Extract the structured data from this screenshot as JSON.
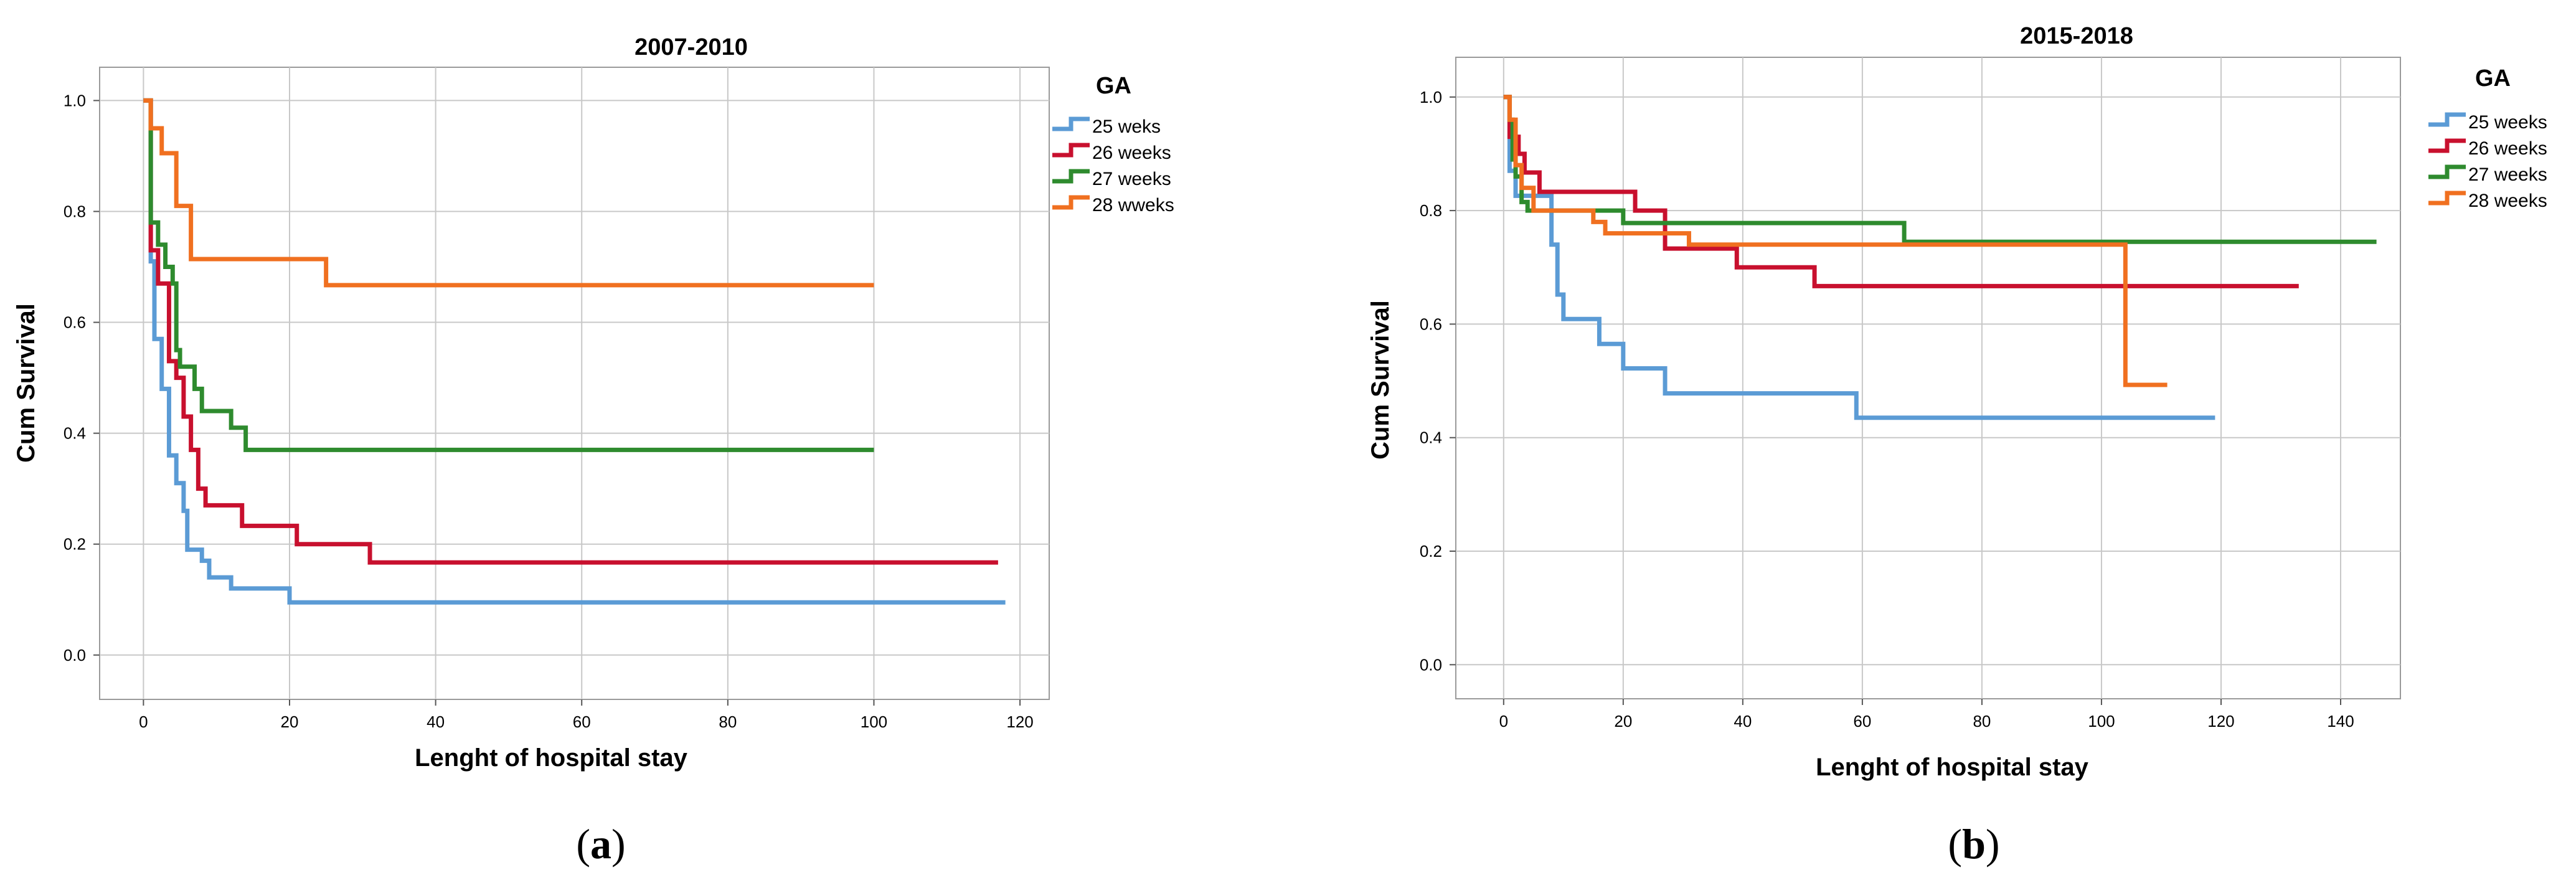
{
  "chart_data": [
    {
      "type": "line",
      "step": true,
      "title": "2007-2010",
      "xlabel": "Lenght of hospital stay",
      "ylabel": "Cum Survival",
      "xlim": [
        -6,
        124
      ],
      "ylim": [
        -0.08,
        1.06
      ],
      "xticks": [
        0,
        20,
        40,
        60,
        80,
        100,
        120
      ],
      "xtick_labels": [
        "0",
        "20",
        "40",
        "60",
        "80",
        "100",
        "120"
      ],
      "yticks": [
        0.0,
        0.2,
        0.4,
        0.6,
        0.8,
        1.0
      ],
      "ytick_labels": [
        "0.0",
        "0.2",
        "0.4",
        "0.6",
        "0.8",
        "1.0"
      ],
      "legend": {
        "title": "GA",
        "position": "top-right"
      },
      "panel_label": "a",
      "series": [
        {
          "name": "25 weks",
          "color": "#5b9bd5",
          "points": [
            [
              0,
              1.0
            ],
            [
              1,
              0.71
            ],
            [
              1.5,
              0.57
            ],
            [
              2.5,
              0.48
            ],
            [
              3.5,
              0.36
            ],
            [
              4.5,
              0.31
            ],
            [
              5.5,
              0.26
            ],
            [
              6,
              0.19
            ],
            [
              8,
              0.17
            ],
            [
              9,
              0.14
            ],
            [
              12,
              0.12
            ],
            [
              20,
              0.095
            ],
            [
              118,
              0.095
            ]
          ]
        },
        {
          "name": "26 weeks",
          "color": "#c8102e",
          "points": [
            [
              0,
              1.0
            ],
            [
              1,
              0.73
            ],
            [
              2,
              0.67
            ],
            [
              3.5,
              0.53
            ],
            [
              4.5,
              0.5
            ],
            [
              5.5,
              0.43
            ],
            [
              6.5,
              0.37
            ],
            [
              7.5,
              0.3
            ],
            [
              8.5,
              0.27
            ],
            [
              13.5,
              0.233
            ],
            [
              21,
              0.2
            ],
            [
              31,
              0.167
            ],
            [
              117,
              0.167
            ]
          ]
        },
        {
          "name": "27 weeks",
          "color": "#2e8b2e",
          "points": [
            [
              0,
              1.0
            ],
            [
              1,
              0.78
            ],
            [
              2,
              0.74
            ],
            [
              3,
              0.7
            ],
            [
              4,
              0.67
            ],
            [
              4.5,
              0.55
            ],
            [
              5,
              0.52
            ],
            [
              7,
              0.48
            ],
            [
              8,
              0.44
            ],
            [
              12,
              0.41
            ],
            [
              14,
              0.37
            ],
            [
              100,
              0.37
            ]
          ]
        },
        {
          "name": "28 wweks",
          "color": "#f07020",
          "points": [
            [
              0,
              1.0
            ],
            [
              1,
              0.95
            ],
            [
              2.5,
              0.905
            ],
            [
              4.5,
              0.81
            ],
            [
              6.5,
              0.714
            ],
            [
              25,
              0.667
            ],
            [
              100,
              0.667
            ]
          ]
        }
      ]
    },
    {
      "type": "line",
      "step": true,
      "title": "2015-2018",
      "xlabel": "Lenght of hospital stay",
      "ylabel": "Cum Survival",
      "xlim": [
        -8,
        150
      ],
      "ylim": [
        -0.06,
        1.07
      ],
      "xticks": [
        0,
        20,
        40,
        60,
        80,
        100,
        120,
        140
      ],
      "xtick_labels": [
        "0",
        "20",
        "40",
        "60",
        "80",
        "100",
        "120",
        "140"
      ],
      "yticks": [
        0.0,
        0.2,
        0.4,
        0.6,
        0.8,
        1.0
      ],
      "ytick_labels": [
        "0.0",
        "0.2",
        "0.4",
        "0.6",
        "0.8",
        "1.0"
      ],
      "legend": {
        "title": "GA",
        "position": "top-right"
      },
      "panel_label": "b",
      "series": [
        {
          "name": "25 weeks",
          "color": "#5b9bd5",
          "points": [
            [
              0,
              1.0
            ],
            [
              1,
              0.87
            ],
            [
              2,
              0.826
            ],
            [
              8,
              0.74
            ],
            [
              9,
              0.652
            ],
            [
              10,
              0.609
            ],
            [
              16,
              0.565
            ],
            [
              20,
              0.522
            ],
            [
              27,
              0.478
            ],
            [
              59,
              0.435
            ],
            [
              119,
              0.435
            ]
          ]
        },
        {
          "name": "26 weeks",
          "color": "#c8102e",
          "points": [
            [
              0,
              1.0
            ],
            [
              1,
              0.93
            ],
            [
              2.5,
              0.9
            ],
            [
              3.5,
              0.867
            ],
            [
              6,
              0.833
            ],
            [
              16,
              0.833
            ],
            [
              22,
              0.8
            ],
            [
              27,
              0.733
            ],
            [
              39,
              0.7
            ],
            [
              52,
              0.667
            ],
            [
              133,
              0.667
            ]
          ]
        },
        {
          "name": "27 weeks",
          "color": "#2e8b2e",
          "points": [
            [
              0,
              1.0
            ],
            [
              1,
              0.96
            ],
            [
              1.5,
              0.89
            ],
            [
              2,
              0.86
            ],
            [
              3,
              0.815
            ],
            [
              4,
              0.8
            ],
            [
              20,
              0.778
            ],
            [
              24,
              0.778
            ],
            [
              67,
              0.745
            ],
            [
              146,
              0.745
            ]
          ]
        },
        {
          "name": "28 weeks",
          "color": "#f07020",
          "points": [
            [
              0,
              1.0
            ],
            [
              1,
              0.96
            ],
            [
              2,
              0.88
            ],
            [
              3,
              0.84
            ],
            [
              5,
              0.8
            ],
            [
              15,
              0.78
            ],
            [
              17,
              0.76
            ],
            [
              31,
              0.74
            ],
            [
              104,
              0.493
            ],
            [
              111,
              0.493
            ]
          ]
        }
      ]
    }
  ]
}
